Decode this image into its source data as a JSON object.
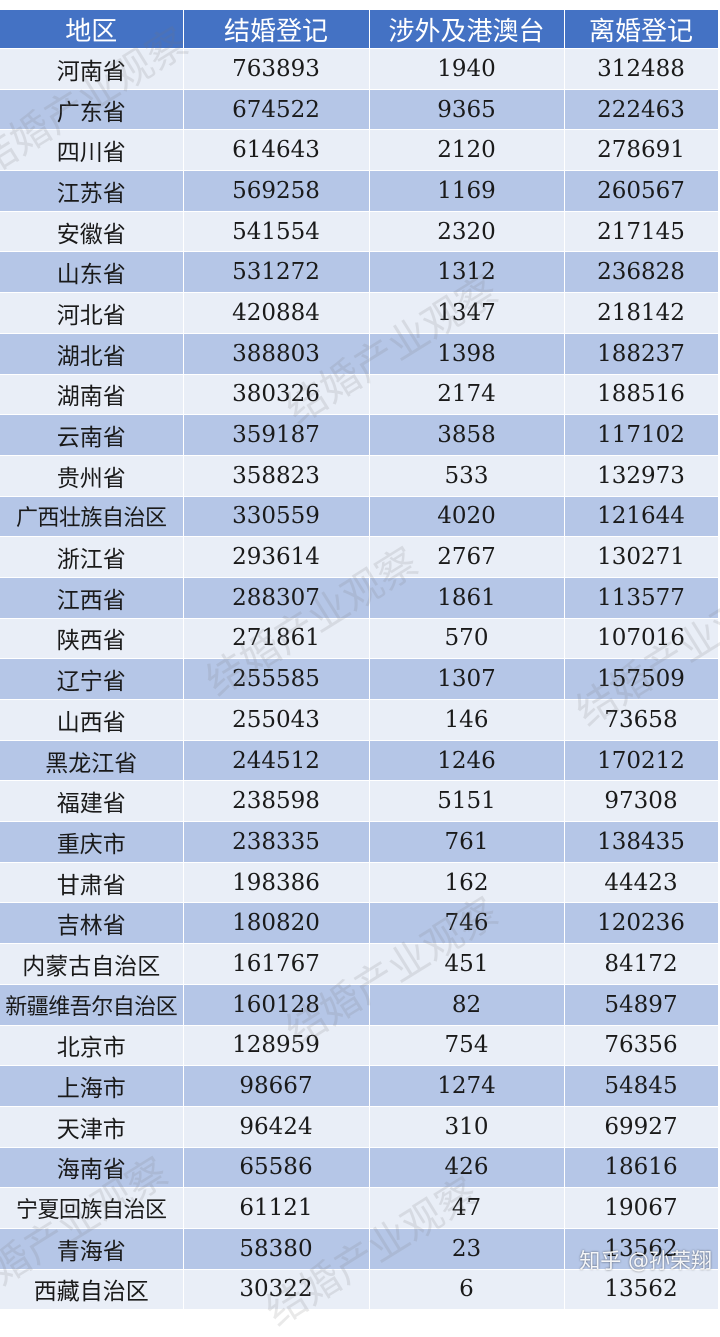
{
  "table": {
    "headers": [
      "地区",
      "结婚登记",
      "涉外及港澳台",
      "离婚登记"
    ],
    "rows": [
      [
        "河南省",
        "763893",
        "1940",
        "312488"
      ],
      [
        "广东省",
        "674522",
        "9365",
        "222463"
      ],
      [
        "四川省",
        "614643",
        "2120",
        "278691"
      ],
      [
        "江苏省",
        "569258",
        "1169",
        "260567"
      ],
      [
        "安徽省",
        "541554",
        "2320",
        "217145"
      ],
      [
        "山东省",
        "531272",
        "1312",
        "236828"
      ],
      [
        "河北省",
        "420884",
        "1347",
        "218142"
      ],
      [
        "湖北省",
        "388803",
        "1398",
        "188237"
      ],
      [
        "湖南省",
        "380326",
        "2174",
        "188516"
      ],
      [
        "云南省",
        "359187",
        "3858",
        "117102"
      ],
      [
        "贵州省",
        "358823",
        "533",
        "132973"
      ],
      [
        "广西壮族自治区",
        "330559",
        "4020",
        "121644"
      ],
      [
        "浙江省",
        "293614",
        "2767",
        "130271"
      ],
      [
        "江西省",
        "288307",
        "1861",
        "113577"
      ],
      [
        "陕西省",
        "271861",
        "570",
        "107016"
      ],
      [
        "辽宁省",
        "255585",
        "1307",
        "157509"
      ],
      [
        "山西省",
        "255043",
        "146",
        "73658"
      ],
      [
        "黑龙江省",
        "244512",
        "1246",
        "170212"
      ],
      [
        "福建省",
        "238598",
        "5151",
        "97308"
      ],
      [
        "重庆市",
        "238335",
        "761",
        "138435"
      ],
      [
        "甘肃省",
        "198386",
        "162",
        "44423"
      ],
      [
        "吉林省",
        "180820",
        "746",
        "120236"
      ],
      [
        "内蒙古自治区",
        "161767",
        "451",
        "84172"
      ],
      [
        "新疆维吾尔自治区",
        "160128",
        "82",
        "54897"
      ],
      [
        "北京市",
        "128959",
        "754",
        "76356"
      ],
      [
        "上海市",
        "98667",
        "1274",
        "54845"
      ],
      [
        "天津市",
        "96424",
        "310",
        "69927"
      ],
      [
        "海南省",
        "65586",
        "426",
        "18616"
      ],
      [
        "宁夏回族自治区",
        "61121",
        "47",
        "19067"
      ],
      [
        "青海省",
        "58380",
        "23",
        "13562"
      ],
      [
        "西藏自治区",
        "30322",
        "6",
        "13562"
      ]
    ]
  },
  "watermark": {
    "text": "结婚产业观察"
  },
  "credit": {
    "text": "知乎 @孙荣翔"
  },
  "colors": {
    "header_bg": "#4472c4",
    "row_light": "#e9eef7",
    "row_dark": "#b5c6e7"
  }
}
